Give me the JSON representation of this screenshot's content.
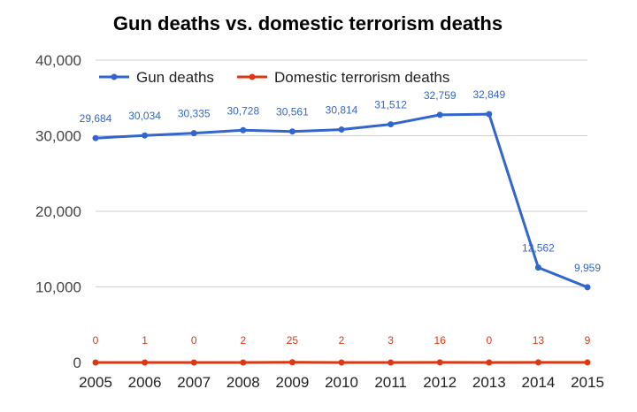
{
  "chart_data": {
    "type": "line",
    "title": "Gun deaths vs. domestic terrorism deaths",
    "xlabel": "",
    "ylabel": "",
    "x": [
      "2005",
      "2006",
      "2007",
      "2008",
      "2009",
      "2010",
      "2011",
      "2012",
      "2013",
      "2014",
      "2015"
    ],
    "ylim": [
      0,
      40000
    ],
    "yticks": [
      "0",
      "10,000",
      "20,000",
      "30,000",
      "40,000"
    ],
    "grid": true,
    "legend_position": "top-left",
    "series": [
      {
        "name": "Gun deaths",
        "color": "#3366cc",
        "values": [
          29684,
          30034,
          30335,
          30728,
          30561,
          30814,
          31512,
          32759,
          32849,
          12562,
          9959
        ],
        "labels": [
          "29,684",
          "30,034",
          "30,335",
          "30,728",
          "30,561",
          "30,814",
          "31,512",
          "32,759",
          "32,849",
          "12,562",
          "9,959"
        ]
      },
      {
        "name": "Domestic terrorism deaths",
        "color": "#dc3912",
        "values": [
          0,
          1,
          0,
          2,
          25,
          2,
          3,
          16,
          0,
          13,
          9
        ],
        "labels": [
          "0",
          "1",
          "0",
          "2",
          "25",
          "2",
          "3",
          "16",
          "0",
          "13",
          "9"
        ]
      }
    ]
  }
}
